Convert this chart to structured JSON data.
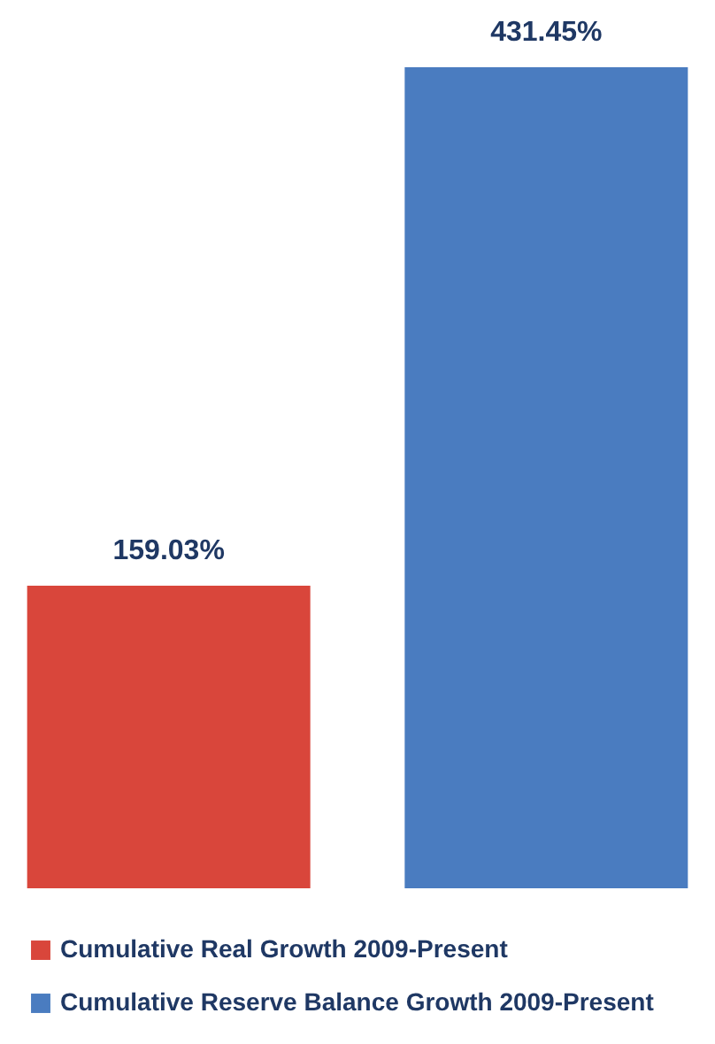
{
  "chart_data": {
    "type": "bar",
    "categories": [
      null
    ],
    "series": [
      {
        "name": "Cumulative Real Growth 2009-Present",
        "color": "#d9463b",
        "values": [
          159.03
        ],
        "value_labels": [
          "159.03%"
        ]
      },
      {
        "name": "Cumulative Reserve Balance Growth 2009-Present",
        "color": "#4a7cc0",
        "values": [
          431.45
        ],
        "value_labels": [
          "431.45%"
        ]
      }
    ],
    "legend": "bottom"
  }
}
